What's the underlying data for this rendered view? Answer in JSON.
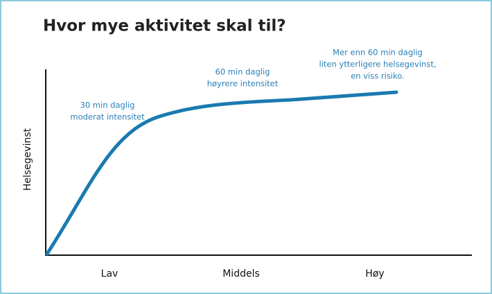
{
  "title": "Hvor mye aktivitet skal til?",
  "y_axis_label": "Helsegevinst",
  "x_labels": [
    "Lav",
    "Middels",
    "Høy"
  ],
  "annotations": [
    {
      "lines": [
        "30 min daglig",
        "moderat intensitet"
      ]
    },
    {
      "lines": [
        "60 min daglig",
        "høyrere intensitet"
      ]
    },
    {
      "lines": [
        "Mer enn 60 min daglig",
        "liten ytterligere helsegevinst,",
        "en viss risiko."
      ]
    }
  ]
}
